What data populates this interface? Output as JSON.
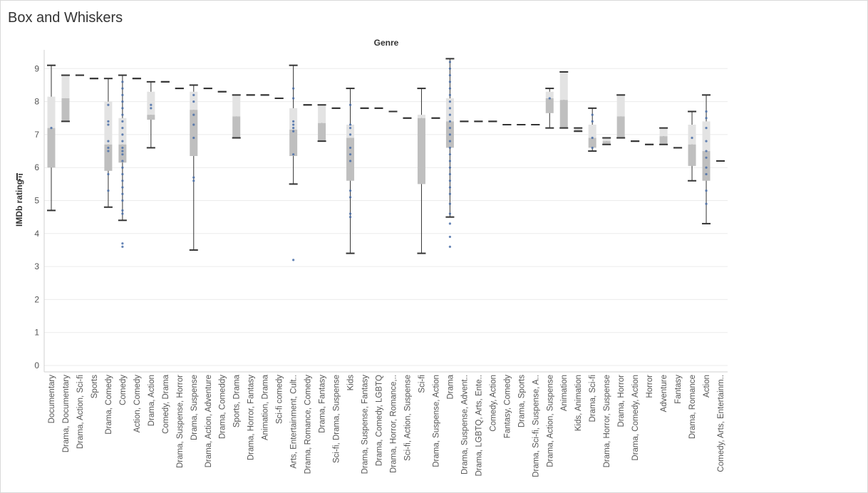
{
  "title": "Box and Whiskers",
  "chart_data": {
    "type": "box",
    "column_header": "Genre",
    "ylabel": "IMDb rating",
    "ylim": [
      0,
      9.5
    ],
    "yticks": [
      0,
      1,
      2,
      3,
      4,
      5,
      6,
      7,
      8,
      9
    ],
    "grid": true,
    "categories": [
      "Documentary",
      "Drama, Documentary",
      "Drama, Action, Sci-fi",
      "Sports",
      "Drama, Comedy",
      "Comedy",
      "Action, Comedy",
      "Drama, Action",
      "Comedy, Drama",
      "Drama, Suspense, Horror",
      "Drama, Suspense",
      "Drama, Action, Adventure",
      "Drama, Comeddy",
      "Sports, Drama",
      "Drama, Horror, Fantasy",
      "Animation, Drama",
      "Sci-fi comedy",
      "Arts, Entertainment, Cult..",
      "Drama, Romance, Comedy",
      "Drama, Fantasy",
      "Sci-fi, Drama, Suspense",
      "Kids",
      "Drama, Suspense, Fantasy",
      "Drama, Comedy, LGBTQ",
      "Drama, Horror, Romance,..",
      "Sci-fi, Action, Suspense",
      "Sci-fi",
      "Drama, Suspense, Action",
      "Drama",
      "Drama, Suspense, Advent..",
      "Drama, LGBTQ, Arts, Ente..",
      "Comedy, Action",
      "Fantasy, Comedy",
      "Drama, Sports",
      "Drama, Sci-fi, Suspense, A..",
      "Drama, Action, Suspense",
      "Animation",
      "Kids, Animation",
      "Drama, Sci-fi",
      "Drama, Horror, Suspense",
      "Drama, Horror",
      "Drama, Comedy, Action",
      "Horror",
      "Adventure",
      "Fantasy",
      "Drama, Romance",
      "Action",
      "Comedy, Arts, Entertainm.."
    ],
    "boxes": [
      {
        "min": 4.7,
        "q1": 6.0,
        "median": 7.2,
        "q3": 8.15,
        "max": 9.1,
        "points": [
          7.2
        ]
      },
      {
        "min": 7.4,
        "q1": 7.4,
        "median": 8.1,
        "q3": 8.8,
        "max": 8.8,
        "points": []
      },
      {
        "min": 8.8,
        "q1": 8.8,
        "median": 8.8,
        "q3": 8.8,
        "max": 8.8,
        "points": []
      },
      {
        "min": 8.7,
        "q1": 8.7,
        "median": 8.7,
        "q3": 8.7,
        "max": 8.7,
        "points": []
      },
      {
        "min": 4.8,
        "q1": 5.9,
        "median": 6.7,
        "q3": 8.0,
        "max": 8.7,
        "points": [
          5.3,
          5.8,
          6.5,
          6.6,
          6.8,
          7.3,
          7.4,
          7.9
        ]
      },
      {
        "min": 4.4,
        "q1": 6.15,
        "median": 6.7,
        "q3": 7.5,
        "max": 8.8,
        "points": [
          3.6,
          3.7,
          4.6,
          4.7,
          5.0,
          5.2,
          5.4,
          5.6,
          5.8,
          6.0,
          6.2,
          6.4,
          6.5,
          6.6,
          6.8,
          7.0,
          7.2,
          7.4,
          7.6,
          7.8,
          8.0,
          8.2,
          8.4,
          8.6
        ]
      },
      {
        "min": 8.7,
        "q1": 8.7,
        "median": 8.7,
        "q3": 8.7,
        "max": 8.7,
        "points": []
      },
      {
        "min": 6.6,
        "q1": 7.45,
        "median": 7.6,
        "q3": 8.3,
        "max": 8.6,
        "points": [
          7.8,
          7.9
        ]
      },
      {
        "min": 8.6,
        "q1": 8.6,
        "median": 8.6,
        "q3": 8.6,
        "max": 8.6,
        "points": []
      },
      {
        "min": 8.4,
        "q1": 8.4,
        "median": 8.4,
        "q3": 8.4,
        "max": 8.4,
        "points": []
      },
      {
        "min": 3.5,
        "q1": 6.35,
        "median": 7.75,
        "q3": 8.3,
        "max": 8.5,
        "points": [
          5.6,
          5.7,
          6.9,
          7.3,
          7.6,
          8.0,
          8.2
        ]
      },
      {
        "min": 8.4,
        "q1": 8.4,
        "median": 8.4,
        "q3": 8.4,
        "max": 8.4,
        "points": []
      },
      {
        "min": 8.3,
        "q1": 8.3,
        "median": 8.3,
        "q3": 8.3,
        "max": 8.3,
        "points": []
      },
      {
        "min": 6.9,
        "q1": 6.9,
        "median": 7.55,
        "q3": 8.2,
        "max": 8.2,
        "points": []
      },
      {
        "min": 8.2,
        "q1": 8.2,
        "median": 8.2,
        "q3": 8.2,
        "max": 8.2,
        "points": []
      },
      {
        "min": 8.2,
        "q1": 8.2,
        "median": 8.2,
        "q3": 8.2,
        "max": 8.2,
        "points": []
      },
      {
        "min": 8.1,
        "q1": 8.1,
        "median": 8.1,
        "q3": 8.1,
        "max": 8.1,
        "points": []
      },
      {
        "min": 5.5,
        "q1": 6.35,
        "median": 7.15,
        "q3": 7.8,
        "max": 9.1,
        "points": [
          3.2,
          6.4,
          7.1,
          7.2,
          7.3,
          7.4,
          8.1,
          8.4
        ]
      },
      {
        "min": 7.9,
        "q1": 7.9,
        "median": 7.9,
        "q3": 7.9,
        "max": 7.9,
        "points": []
      },
      {
        "min": 6.8,
        "q1": 6.8,
        "median": 7.35,
        "q3": 7.9,
        "max": 7.9,
        "points": []
      },
      {
        "min": 7.8,
        "q1": 7.8,
        "median": 7.8,
        "q3": 7.8,
        "max": 7.8,
        "points": []
      },
      {
        "min": 3.4,
        "q1": 5.6,
        "median": 6.9,
        "q3": 7.3,
        "max": 8.4,
        "points": [
          4.5,
          4.6,
          5.1,
          5.3,
          6.2,
          6.4,
          6.6,
          7.0,
          7.2,
          7.3,
          7.9
        ]
      },
      {
        "min": 7.8,
        "q1": 7.8,
        "median": 7.8,
        "q3": 7.8,
        "max": 7.8,
        "points": []
      },
      {
        "min": 7.8,
        "q1": 7.8,
        "median": 7.8,
        "q3": 7.8,
        "max": 7.8,
        "points": []
      },
      {
        "min": 7.7,
        "q1": 7.7,
        "median": 7.7,
        "q3": 7.7,
        "max": 7.7,
        "points": []
      },
      {
        "min": 7.5,
        "q1": 7.5,
        "median": 7.5,
        "q3": 7.5,
        "max": 7.5,
        "points": []
      },
      {
        "min": 3.4,
        "q1": 5.5,
        "median": 7.5,
        "q3": 7.6,
        "max": 8.4,
        "points": []
      },
      {
        "min": 7.5,
        "q1": 7.5,
        "median": 7.5,
        "q3": 7.5,
        "max": 7.5,
        "points": []
      },
      {
        "min": 4.5,
        "q1": 6.6,
        "median": 7.4,
        "q3": 8.1,
        "max": 9.3,
        "points": [
          3.6,
          3.9,
          4.3,
          4.6,
          4.9,
          5.2,
          5.4,
          5.6,
          5.8,
          6.0,
          6.2,
          6.4,
          6.6,
          6.8,
          7.0,
          7.2,
          7.4,
          7.6,
          7.8,
          8.0,
          8.2,
          8.4,
          8.6,
          8.8,
          9.0,
          9.2
        ]
      },
      {
        "min": 7.4,
        "q1": 7.4,
        "median": 7.4,
        "q3": 7.4,
        "max": 7.4,
        "points": []
      },
      {
        "min": 7.4,
        "q1": 7.4,
        "median": 7.4,
        "q3": 7.4,
        "max": 7.4,
        "points": []
      },
      {
        "min": 7.4,
        "q1": 7.4,
        "median": 7.4,
        "q3": 7.4,
        "max": 7.4,
        "points": []
      },
      {
        "min": 7.3,
        "q1": 7.3,
        "median": 7.3,
        "q3": 7.3,
        "max": 7.3,
        "points": []
      },
      {
        "min": 7.3,
        "q1": 7.3,
        "median": 7.3,
        "q3": 7.3,
        "max": 7.3,
        "points": []
      },
      {
        "min": 7.3,
        "q1": 7.3,
        "median": 7.3,
        "q3": 7.3,
        "max": 7.3,
        "points": []
      },
      {
        "min": 7.2,
        "q1": 7.65,
        "median": 8.1,
        "q3": 8.3,
        "max": 8.4,
        "points": [
          8.1
        ]
      },
      {
        "min": 7.2,
        "q1": 7.2,
        "median": 8.05,
        "q3": 8.9,
        "max": 8.9,
        "points": []
      },
      {
        "min": 7.1,
        "q1": 7.1,
        "median": 7.15,
        "q3": 7.2,
        "max": 7.2,
        "points": []
      },
      {
        "min": 6.5,
        "q1": 6.6,
        "median": 6.9,
        "q3": 7.3,
        "max": 7.8,
        "points": [
          6.6,
          6.9,
          7.4,
          7.6
        ]
      },
      {
        "min": 6.7,
        "q1": 6.7,
        "median": 6.8,
        "q3": 6.9,
        "max": 6.9,
        "points": []
      },
      {
        "min": 6.9,
        "q1": 6.9,
        "median": 7.55,
        "q3": 8.2,
        "max": 8.2,
        "points": []
      },
      {
        "min": 6.8,
        "q1": 6.8,
        "median": 6.8,
        "q3": 6.8,
        "max": 6.8,
        "points": []
      },
      {
        "min": 6.7,
        "q1": 6.7,
        "median": 6.7,
        "q3": 6.7,
        "max": 6.7,
        "points": []
      },
      {
        "min": 6.7,
        "q1": 6.7,
        "median": 6.95,
        "q3": 7.2,
        "max": 7.2,
        "points": []
      },
      {
        "min": 6.6,
        "q1": 6.6,
        "median": 6.6,
        "q3": 6.6,
        "max": 6.6,
        "points": []
      },
      {
        "min": 5.6,
        "q1": 6.05,
        "median": 6.7,
        "q3": 7.3,
        "max": 7.7,
        "points": [
          6.9
        ]
      },
      {
        "min": 4.3,
        "q1": 5.6,
        "median": 6.5,
        "q3": 7.4,
        "max": 8.2,
        "points": [
          4.9,
          5.3,
          5.8,
          6.0,
          6.3,
          6.5,
          6.8,
          7.2,
          7.5,
          7.7
        ]
      },
      {
        "min": 6.2,
        "q1": 6.2,
        "median": 6.2,
        "q3": 6.2,
        "max": 6.2,
        "points": []
      }
    ]
  },
  "colors": {
    "upper_box": "#e3e3e3",
    "lower_box": "#bfbfbf",
    "whisker": "#333333",
    "point": "#4a6ea8",
    "grid": "#ebebeb",
    "text": "#333333"
  }
}
